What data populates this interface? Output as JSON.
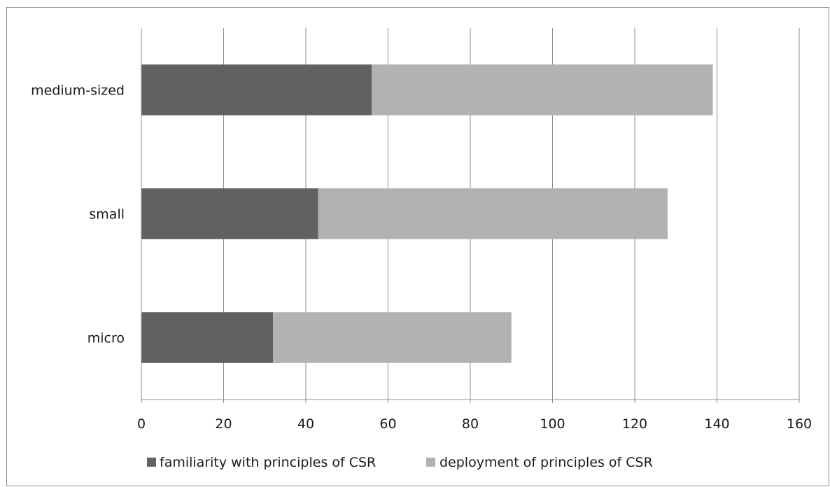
{
  "chart_data": {
    "type": "bar",
    "orientation": "horizontal",
    "stacked": true,
    "categories": [
      "medium-sized",
      "small",
      "micro"
    ],
    "series": [
      {
        "name": "familiarity with principles of CSR",
        "values": [
          56,
          43,
          32
        ],
        "color": "#616161"
      },
      {
        "name": "deployment of principles of CSR",
        "values": [
          83,
          85,
          58
        ],
        "color": "#b2b2b2"
      }
    ],
    "xlim": [
      0,
      160
    ],
    "xticks": [
      0,
      20,
      40,
      60,
      80,
      100,
      120,
      140,
      160
    ],
    "grid": "vertical",
    "legend_position": "bottom",
    "title": "",
    "xlabel": "",
    "ylabel": ""
  }
}
